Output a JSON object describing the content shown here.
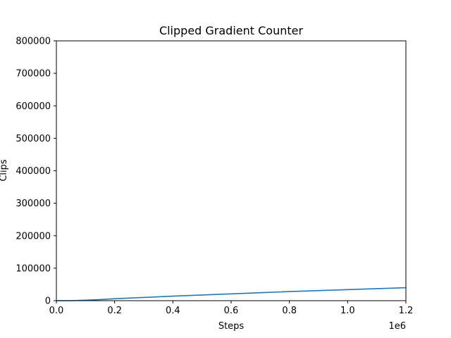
{
  "chart_data": {
    "type": "line",
    "title": "Clipped Gradient Counter",
    "xlabel": "Steps",
    "ylabel": "Clips",
    "x_offset_label": "1e6",
    "xlim": [
      0,
      1200000
    ],
    "ylim": [
      0,
      800000
    ],
    "x_ticks": [
      0,
      200000,
      400000,
      600000,
      800000,
      1000000,
      1200000
    ],
    "x_tick_labels": [
      "0.0",
      "0.2",
      "0.4",
      "0.6",
      "0.8",
      "1.0",
      "1.2"
    ],
    "y_ticks": [
      0,
      100000,
      200000,
      300000,
      400000,
      500000,
      600000,
      700000,
      800000
    ],
    "y_tick_labels": [
      "0",
      "100000",
      "200000",
      "300000",
      "400000",
      "500000",
      "600000",
      "700000",
      "800000"
    ],
    "grid": false,
    "series": [
      {
        "color": "#1f77b4",
        "x": [
          0,
          50000,
          100000,
          150000,
          200000,
          300000,
          400000,
          500000,
          600000,
          700000,
          800000,
          900000,
          1000000,
          1100000,
          1200000
        ],
        "y": [
          0,
          0,
          1500,
          3500,
          6000,
          10000,
          14000,
          17500,
          21000,
          24500,
          28000,
          31000,
          34000,
          37000,
          40000
        ]
      }
    ]
  }
}
